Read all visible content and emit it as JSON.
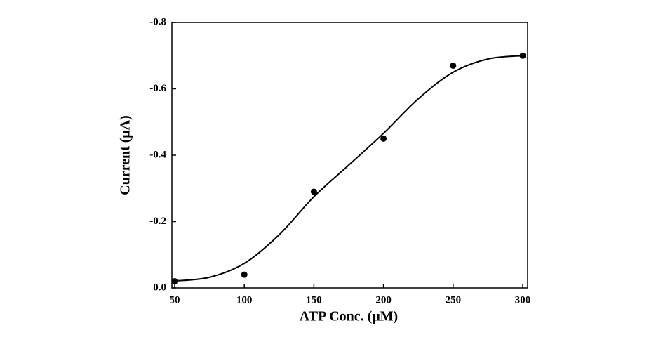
{
  "chart_data": {
    "type": "scatter",
    "xlabel": "ATP Conc. (μM)",
    "ylabel": "Current (μA)",
    "xlim": [
      48,
      303.5
    ],
    "ylim": [
      0,
      -0.8
    ],
    "xticks": [
      50,
      100,
      150,
      200,
      250,
      300
    ],
    "yticks": [
      {
        "value": 0,
        "label": "0.0"
      },
      -0.2,
      -0.4,
      -0.6,
      -0.8
    ],
    "series": [
      {
        "style": "markers",
        "color": "#000000",
        "x": [
          50,
          100,
          150,
          200,
          250,
          300
        ],
        "values": [
          -0.02,
          -0.04,
          -0.29,
          -0.45,
          -0.67,
          -0.7
        ]
      },
      {
        "style": "line",
        "color": "#000000",
        "x": [
          50,
          75,
          100,
          125,
          150,
          175,
          200,
          225,
          250,
          275,
          300
        ],
        "values": [
          -0.021,
          -0.032,
          -0.074,
          -0.16,
          -0.275,
          -0.37,
          -0.466,
          -0.57,
          -0.65,
          -0.69,
          -0.7
        ]
      }
    ]
  }
}
